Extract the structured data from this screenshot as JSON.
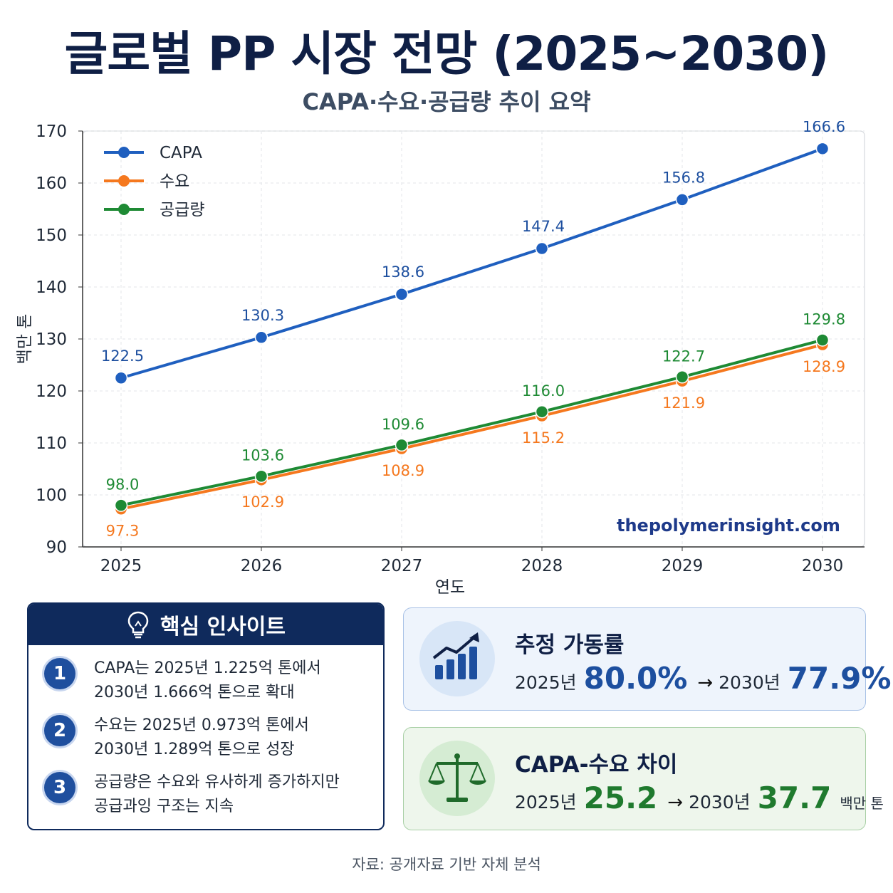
{
  "header": {
    "title": "글로벌 PP 시장 전망 (2025~2030)",
    "subtitle": "CAPA·수요·공급량 추이 요약"
  },
  "watermark": "thepolymerinsight.com",
  "chart_data": {
    "type": "line",
    "x": [
      "2025",
      "2026",
      "2027",
      "2028",
      "2029",
      "2030"
    ],
    "xlabel": "연도",
    "ylabel": "백만 톤",
    "ylim": [
      90,
      170
    ],
    "yticks": [
      90,
      100,
      110,
      120,
      130,
      140,
      150,
      160,
      170
    ],
    "grid": true,
    "legend": "top-left",
    "series": [
      {
        "name": "CAPA",
        "color": "#1f5fbf",
        "values": [
          122.5,
          130.3,
          138.6,
          147.4,
          156.8,
          166.6
        ],
        "labels": [
          "122.5",
          "130.3",
          "138.6",
          "147.4",
          "156.8",
          "166.6"
        ]
      },
      {
        "name": "수요",
        "color": "#f5781e",
        "values": [
          97.3,
          102.9,
          108.9,
          115.2,
          121.9,
          128.9
        ],
        "labels": [
          "97.3",
          "102.9",
          "108.9",
          "115.2",
          "121.9",
          "128.9"
        ]
      },
      {
        "name": "공급량",
        "color": "#1e8a34",
        "values": [
          98.0,
          103.6,
          109.6,
          116.0,
          122.7,
          129.8
        ],
        "labels": [
          "98.0",
          "103.6",
          "109.6",
          "116.0",
          "122.7",
          "129.8"
        ]
      }
    ]
  },
  "insights": {
    "title": "핵심 인사이트",
    "icon": "lightbulb-icon",
    "items": [
      {
        "num": "1",
        "line1": "CAPA는 2025년 1.225억 톤에서",
        "line2": "2030년 1.666억 톤으로 확대"
      },
      {
        "num": "2",
        "line1": "수요는 2025년 0.973억 톤에서",
        "line2": "2030년 1.289억 톤으로 성장"
      },
      {
        "num": "3",
        "line1": "공급량은 수요와 유사하게 증가하지만",
        "line2": "공급과잉 구조는 지속"
      }
    ]
  },
  "cards": {
    "utilization": {
      "icon": "bar-chart-up-icon",
      "title": "추정 가동률",
      "from_year": "2025년",
      "from_value": "80.0%",
      "arrow": "→",
      "to_year": "2030년",
      "to_value": "77.9%"
    },
    "gap": {
      "icon": "balance-scale-icon",
      "title": "CAPA-수요 차이",
      "from_year": "2025년",
      "from_value": "25.2",
      "arrow": "→",
      "to_year": "2030년",
      "to_value": "37.7",
      "unit": "백만 톤"
    }
  },
  "source": "자료: 공개자료 기반 자체 분석"
}
